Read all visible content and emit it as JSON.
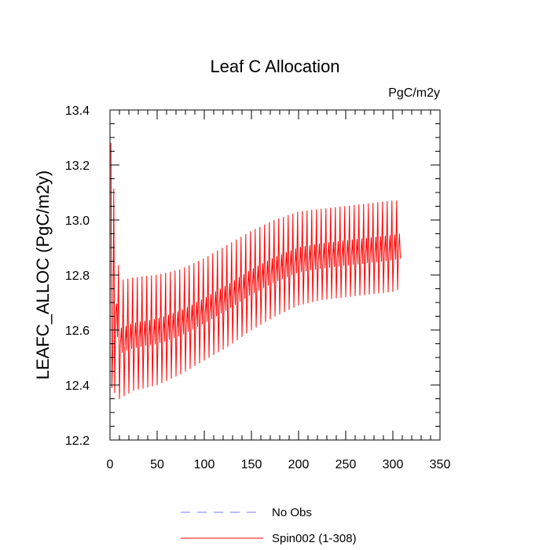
{
  "chart_data": {
    "type": "line",
    "title": "Leaf C Allocation",
    "units_label": "PgC/m2y",
    "xlabel": "",
    "ylabel": "LEAFC_ALLOC  (PgC/m2y)",
    "xlim": [
      0,
      350
    ],
    "ylim": [
      12.2,
      13.4
    ],
    "xticks": [
      0,
      50,
      100,
      150,
      200,
      250,
      300,
      350
    ],
    "xtick_labels": [
      "0",
      "50",
      "100",
      "150",
      "200",
      "250",
      "300",
      "350"
    ],
    "yticks": [
      12.2,
      12.4,
      12.6,
      12.8,
      13.0,
      13.2,
      13.4
    ],
    "ytick_labels": [
      "12.2",
      "12.4",
      "12.6",
      "12.8",
      "13.0",
      "13.2",
      "13.4"
    ],
    "grid": false,
    "legend_position": "bottom-center",
    "series": [
      {
        "name": "No Obs",
        "style": "dashed",
        "color": "#7777ff",
        "values": []
      },
      {
        "name": "Spin002 (1-308)",
        "style": "solid",
        "color": "#ff0000",
        "x_range": [
          1,
          308
        ],
        "initial_spike": 13.28,
        "envelope_note": "oscillating series; upper and lower envelope estimated from the plot",
        "envelope_x": [
          1,
          10,
          25,
          50,
          75,
          100,
          125,
          150,
          175,
          200,
          225,
          250,
          275,
          300,
          308
        ],
        "upper_envelope": [
          13.28,
          12.78,
          12.79,
          12.8,
          12.82,
          12.86,
          12.91,
          12.96,
          13.0,
          13.03,
          13.04,
          13.05,
          13.06,
          13.07,
          13.07
        ],
        "lower_envelope": [
          12.39,
          12.35,
          12.38,
          12.4,
          12.44,
          12.49,
          12.54,
          12.6,
          12.65,
          12.69,
          12.71,
          12.72,
          12.73,
          12.74,
          12.75
        ]
      }
    ]
  }
}
